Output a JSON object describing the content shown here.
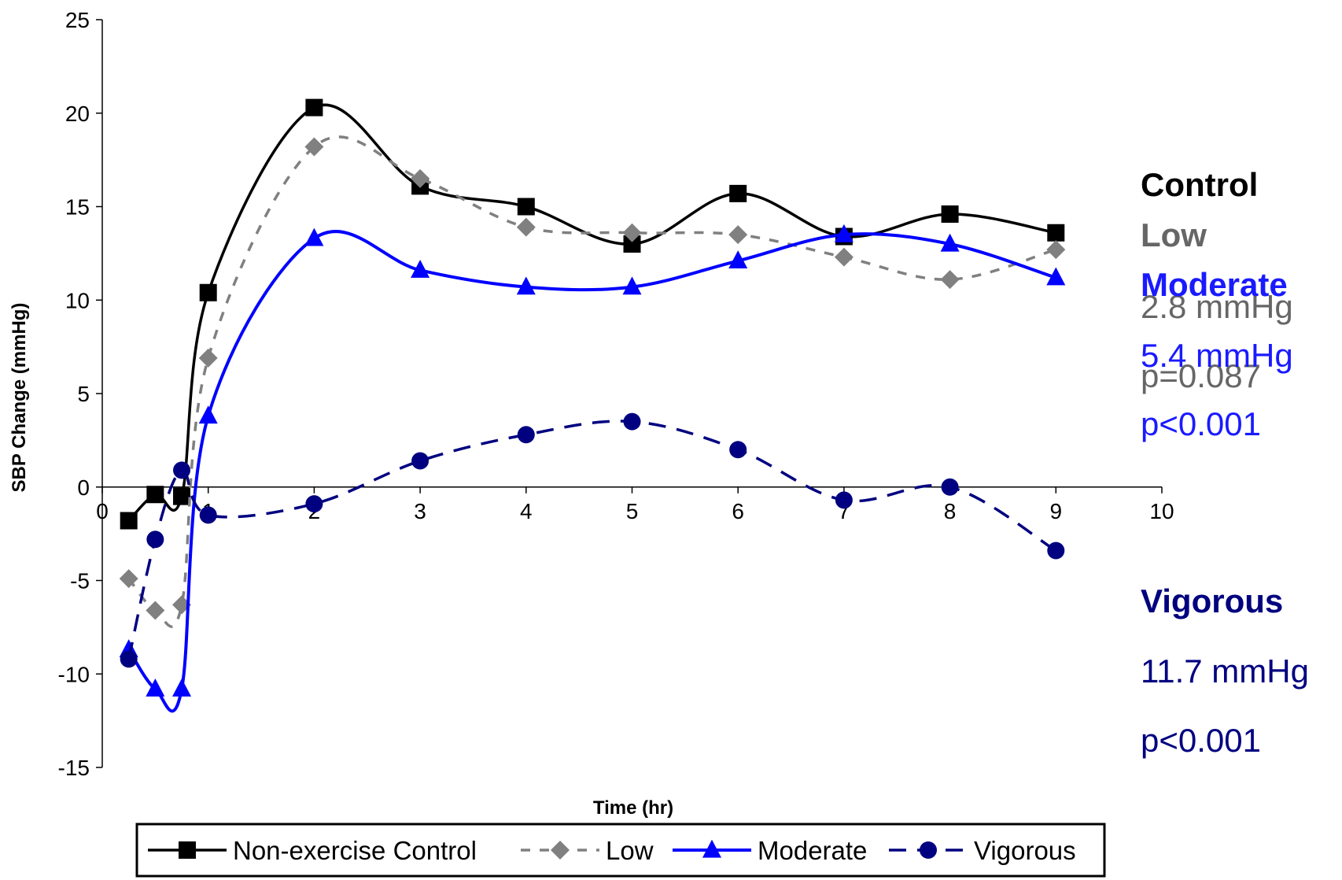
{
  "chart_data": {
    "type": "line",
    "title": "",
    "xlabel": "Time (hr)",
    "ylabel": "SBP Change (mmHg)",
    "xlim": [
      0,
      10
    ],
    "ylim": [
      -15,
      25
    ],
    "x_ticks": [
      "0",
      "1",
      "2",
      "3",
      "4",
      "5",
      "6",
      "7",
      "8",
      "9",
      "10"
    ],
    "y_ticks": [
      "25",
      "20",
      "15",
      "10",
      "5",
      "0",
      "-5",
      "-10",
      "-15"
    ],
    "grid": false,
    "legend_position": "bottom",
    "series": [
      {
        "name": "Non-exercise Control",
        "color": "#000000",
        "line": "solid",
        "marker": "square",
        "x": [
          0.25,
          0.5,
          0.75,
          1,
          2,
          3,
          4,
          5,
          6,
          7,
          8,
          9
        ],
        "y": [
          -1.8,
          -0.4,
          -0.5,
          10.4,
          20.3,
          16.1,
          15.0,
          13.0,
          15.7,
          13.4,
          14.6,
          13.6
        ]
      },
      {
        "name": "Low",
        "color": "#808080",
        "line": "dashed",
        "marker": "diamond",
        "x": [
          0.25,
          0.5,
          0.75,
          1,
          2,
          3,
          4,
          5,
          6,
          7,
          8,
          9
        ],
        "y": [
          -4.9,
          -6.6,
          -6.3,
          6.9,
          18.2,
          16.5,
          13.9,
          13.6,
          13.5,
          12.3,
          11.1,
          12.7
        ]
      },
      {
        "name": "Moderate",
        "color": "#0000ff",
        "line": "solid",
        "marker": "triangle",
        "x": [
          0.25,
          0.5,
          0.75,
          1,
          2,
          3,
          4,
          5,
          6,
          7,
          8,
          9
        ],
        "y": [
          -8.7,
          -10.8,
          -10.8,
          3.8,
          13.3,
          11.6,
          10.7,
          10.7,
          12.1,
          13.5,
          13.0,
          11.2
        ]
      },
      {
        "name": "Vigorous",
        "color": "#000080",
        "line": "dashed",
        "marker": "circle",
        "x": [
          0.25,
          0.5,
          0.75,
          1,
          2,
          3,
          4,
          5,
          6,
          7,
          8,
          9
        ],
        "y": [
          -9.2,
          -2.8,
          0.9,
          -1.5,
          -0.9,
          1.4,
          2.8,
          3.5,
          2.0,
          -0.7,
          0.0,
          -3.4
        ]
      }
    ]
  },
  "annotations": {
    "control_label": "Control",
    "low_label": "Low",
    "low_value": "2.8 mmHg",
    "low_p": "p=0.087",
    "moderate_label": "Moderate",
    "moderate_value": "5.4 mmHg",
    "moderate_p": "p<0.001",
    "vigorous_label": "Vigorous",
    "vigorous_value": "11.7 mmHg",
    "vigorous_p": "p<0.001",
    "colors": {
      "control": "#000000",
      "low": "#666666",
      "moderate": "#1a1aff",
      "vigorous": "#000080"
    }
  }
}
